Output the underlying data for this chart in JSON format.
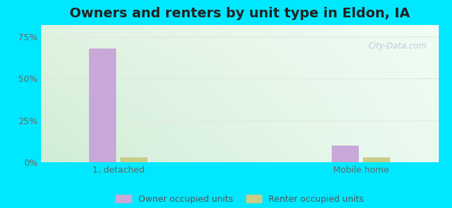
{
  "title": "Owners and renters by unit type in Eldon, IA",
  "categories": [
    "1, detached",
    "Mobile home"
  ],
  "owner_values": [
    68.0,
    10.0
  ],
  "renter_values": [
    3.0,
    3.0
  ],
  "owner_color": "#c8a8d8",
  "renter_color": "#c8cc88",
  "yticks": [
    0,
    25,
    50,
    75
  ],
  "ytick_labels": [
    "0%",
    "25%",
    "50%",
    "75%"
  ],
  "ylim": [
    0,
    82
  ],
  "background_outer": "#00e8ff",
  "grid_color": "#e0e8e0",
  "title_fontsize": 14,
  "label_fontsize": 9,
  "legend_fontsize": 9,
  "watermark_text": "City-Data.com",
  "bar_width": 0.28,
  "group_positions": [
    1.0,
    3.5
  ]
}
